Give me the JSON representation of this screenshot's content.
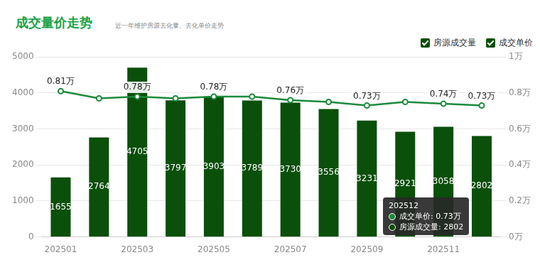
{
  "chart_data": {
    "type": "bar",
    "title": "成交量价走势",
    "subtitle": "近一年维护房源去化量、去化单价走势",
    "categories": [
      "202501",
      null,
      "202503",
      null,
      "202505",
      null,
      "202507",
      null,
      "202509",
      null,
      "202511",
      null
    ],
    "series": [
      {
        "name": "房源成交量",
        "type": "bar",
        "color": "#0a4f0a",
        "values": [
          1655,
          2764,
          4705,
          3797,
          3903,
          3789,
          3730,
          3556,
          3231,
          2921,
          3058,
          2802
        ]
      },
      {
        "name": "成交单价",
        "type": "line",
        "color": "#1b8a3a",
        "axis": "y2",
        "marker": "circle",
        "values": [
          0.81,
          0.77,
          0.78,
          0.77,
          0.78,
          0.78,
          0.76,
          0.75,
          0.73,
          0.75,
          0.74,
          0.73
        ],
        "value_labels": [
          "0.81万",
          null,
          "0.78万",
          null,
          "0.78万",
          null,
          "0.76万",
          null,
          "0.73万",
          null,
          "0.74万",
          "0.73万"
        ]
      }
    ],
    "ylim": [
      0,
      5000
    ],
    "yticks": [
      0,
      1000,
      2000,
      3000,
      4000,
      5000
    ],
    "y2lim": [
      0,
      1
    ],
    "y2ticks": [
      {
        "value": 0,
        "label": "0万"
      },
      {
        "value": 0.2,
        "label": "0.2万"
      },
      {
        "value": 0.4,
        "label": "0.4万"
      },
      {
        "value": 0.6,
        "label": "0.6万"
      },
      {
        "value": 0.8,
        "label": "0.8万"
      },
      {
        "value": 1,
        "label": "1万"
      }
    ],
    "grid": true,
    "legend": "top-right",
    "data_labels": true,
    "tooltip": {
      "title": "202512",
      "items": [
        "成交单价: 0.73万",
        "房源成交量: 2802"
      ]
    }
  }
}
